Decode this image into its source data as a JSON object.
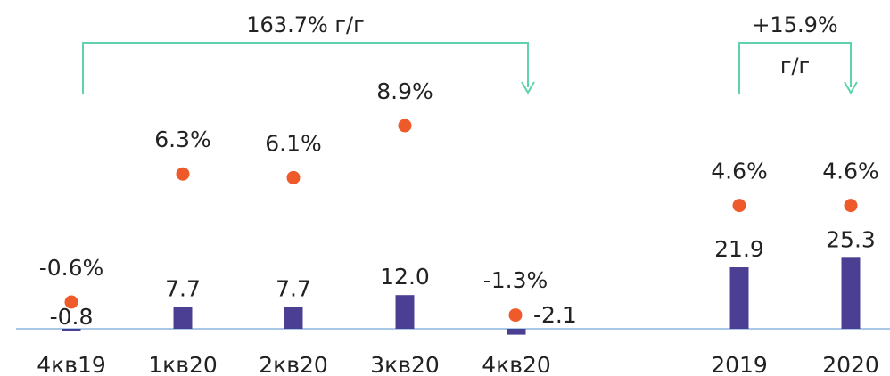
{
  "chart_data": {
    "type": "bar",
    "categories": [
      "4кв19",
      "1кв20",
      "2кв20",
      "3кв20",
      "4кв20",
      "2019",
      "2020"
    ],
    "series": [
      {
        "type": "bar",
        "values": [
          -0.8,
          7.7,
          7.7,
          12.0,
          -2.1,
          21.9,
          25.3
        ],
        "value_labels": [
          "-0.8",
          "7.7",
          "7.7",
          "12.0",
          "-2.1",
          "21.9",
          "25.3"
        ],
        "color": "#4b3f94"
      },
      {
        "type": "scatter",
        "values": [
          -0.6,
          6.3,
          6.1,
          8.9,
          -1.3,
          4.6,
          4.6
        ],
        "value_labels": [
          "-0.6%",
          "6.3%",
          "6.1%",
          "8.9%",
          "-1.3%",
          "4.6%",
          "4.6%"
        ],
        "color": "#ef5a2b"
      }
    ],
    "annotations": [
      {
        "from": "4кв19",
        "to": "4кв20",
        "text": [
          "163.7% г/г"
        ]
      },
      {
        "from": "2019",
        "to": "2020",
        "text": [
          "+15.9%",
          "г/г"
        ]
      }
    ],
    "bar_ylim": [
      -3,
      30
    ],
    "pct_ylim": [
      -2,
      10
    ],
    "baseline_color": "#a9c8e6",
    "bracket_color": "#5fd3b0",
    "title": "",
    "xlabel": "",
    "ylabel": "",
    "grid": false,
    "legend": "none"
  }
}
